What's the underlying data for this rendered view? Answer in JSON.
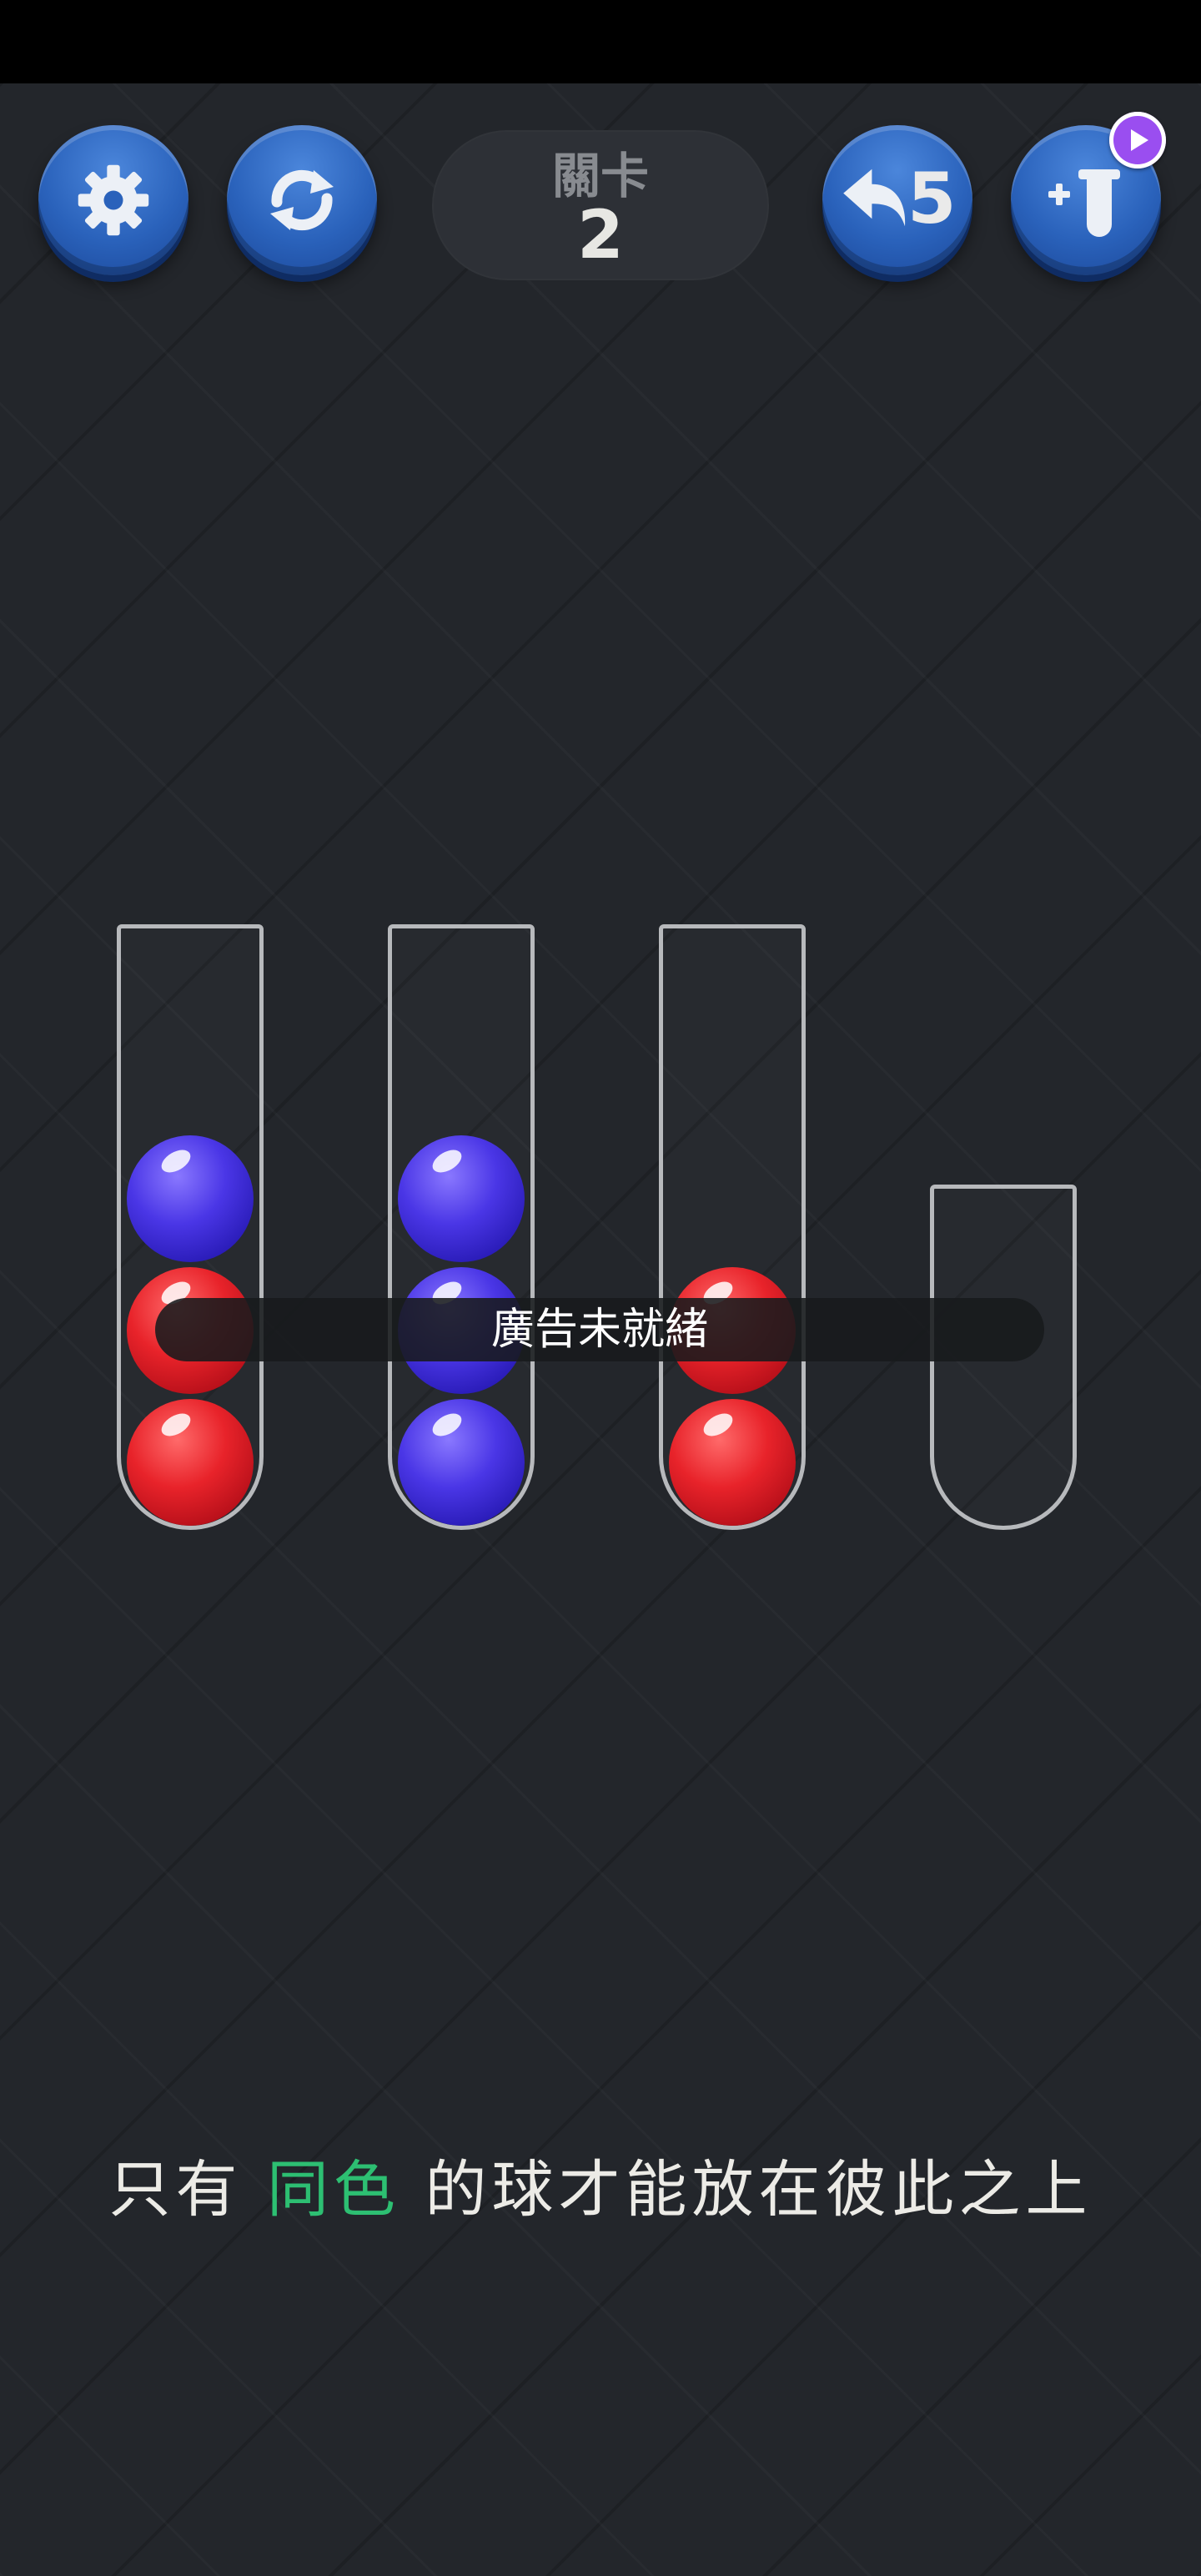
{
  "level": {
    "label": "關卡",
    "number": "2"
  },
  "toolbar": {
    "settings": {
      "icon": "gear-icon"
    },
    "restart": {
      "icon": "restart-icon"
    },
    "undo": {
      "icon": "undo-arrow-icon",
      "count": "5"
    },
    "add_tube": {
      "icon": "add-tube-icon",
      "badge_icon": "play-video-icon"
    }
  },
  "tubes": [
    {
      "balls_top_to_bottom": [
        "blue",
        "red",
        "red"
      ]
    },
    {
      "balls_top_to_bottom": [
        "blue",
        "blue",
        "blue"
      ]
    },
    {
      "balls_top_to_bottom": [
        "red",
        "red"
      ]
    },
    {
      "balls_top_to_bottom": []
    }
  ],
  "toast": "廣告未就緒",
  "hint": {
    "before": "只有 ",
    "highlight": "同色",
    "after": " 的球才能放在彼此之上"
  },
  "colors": {
    "red": "#e8232a",
    "blue": "#4a36e6",
    "accent": "#2dbf72",
    "button": "#2a62bb"
  }
}
